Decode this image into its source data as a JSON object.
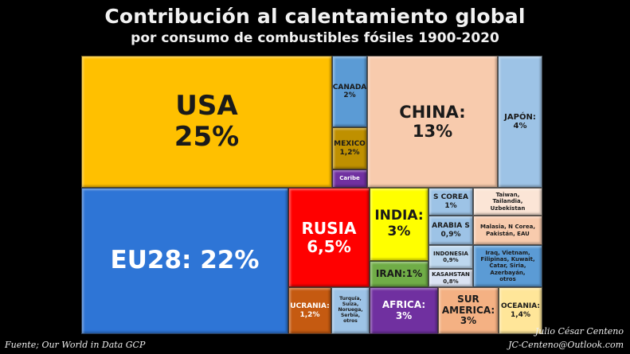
{
  "title": "Contribución al calentamiento global",
  "subtitle": "por consumo de combustibles fósiles 1900-2020",
  "source": "Fuente; Our World in Data GCP",
  "author": "Julio César Centeno",
  "email": "JC-Centeno@Outlook.com",
  "chart_data": {
    "type": "treemap",
    "title": "Contribución al calentamiento global",
    "subtitle": "por consumo de combustibles fósiles 1900-2020",
    "items": [
      {
        "label": "USA\n25%",
        "name": "USA",
        "value": 25,
        "color": "#ffc000",
        "text": "#1a1a1a"
      },
      {
        "label": "CANADA\n2%",
        "name": "CANADA",
        "value": 2,
        "color": "#5b9bd5",
        "text": "#1a1a1a"
      },
      {
        "label": "MEXICO\n1,2%",
        "name": "MEXICO",
        "value": 1.2,
        "color": "#bf9000",
        "text": "#1a1a1a"
      },
      {
        "label": "Caribe",
        "name": "Caribe",
        "value": null,
        "color": "#7030a0",
        "text": "#ffffff"
      },
      {
        "label": "CHINA:\n13%",
        "name": "CHINA",
        "value": 13,
        "color": "#f8cbad",
        "text": "#1a1a1a"
      },
      {
        "label": "JAPÓN:\n4%",
        "name": "JAPÓN",
        "value": 4,
        "color": "#9dc3e6",
        "text": "#1a1a1a"
      },
      {
        "label": "EU28: 22%",
        "name": "EU28",
        "value": 22,
        "color": "#2e75d6",
        "text": "#ffffff"
      },
      {
        "label": "RUSIA\n6,5%",
        "name": "RUSIA",
        "value": 6.5,
        "color": "#ff0000",
        "text": "#ffffff"
      },
      {
        "label": "INDIA:\n3%",
        "name": "INDIA",
        "value": 3,
        "color": "#ffff00",
        "text": "#1a1a1a"
      },
      {
        "label": "IRAN:1%",
        "name": "IRAN",
        "value": 1,
        "color": "#70ad47",
        "text": "#1a1a1a"
      },
      {
        "label": "S COREA\n1%",
        "name": "S COREA",
        "value": 1,
        "color": "#9dc3e6",
        "text": "#1a1a1a"
      },
      {
        "label": "Taiwan,\nTailandia,\nUzbekistan",
        "name": "Taiwan, Tailandia, Uzbekistan",
        "value": null,
        "color": "#fbe5d6",
        "text": "#1a1a1a"
      },
      {
        "label": "ARABIA S\n0,9%",
        "name": "ARABIA S",
        "value": 0.9,
        "color": "#9dc3e6",
        "text": "#1a1a1a"
      },
      {
        "label": "Malasia, N Corea,\nPakistán, EAU",
        "name": "Malasia, N Corea, Pakistán, EAU",
        "value": null,
        "color": "#f8cbad",
        "text": "#1a1a1a"
      },
      {
        "label": "INDONESIA\n0,9%",
        "name": "INDONESIA",
        "value": 0.9,
        "color": "#bdd7ee",
        "text": "#1a1a1a"
      },
      {
        "label": "KASAHSTAN\n0,8%",
        "name": "KASAHSTAN",
        "value": 0.8,
        "color": "#dae3f3",
        "text": "#1a1a1a"
      },
      {
        "label": "Iraq, Vietnam,\nFilipinas, Kuwait,\nCatar, Siria,\nAzerbayán,\notros",
        "name": "Iraq, Vietnam, Filipinas, Kuwait, Catar, Siria, Azerbayán, otros",
        "value": null,
        "color": "#5b9bd5",
        "text": "#1a1a1a"
      },
      {
        "label": "UCRANIA:\n1,2%",
        "name": "UCRANIA",
        "value": 1.2,
        "color": "#c55a11",
        "text": "#ffffff"
      },
      {
        "label": "Turquía,\nSuiza,\nNoruega,\nSerbia,\notros",
        "name": "Turquía, Suiza, Noruega, Serbia, otros",
        "value": null,
        "color": "#9dc3e6",
        "text": "#1a1a1a"
      },
      {
        "label": "AFRICA:\n3%",
        "name": "AFRICA",
        "value": 3,
        "color": "#7030a0",
        "text": "#ffffff"
      },
      {
        "label": "SUR\nAMERICA:\n3%",
        "name": "SUR AMERICA",
        "value": 3,
        "color": "#f4b183",
        "text": "#1a1a1a"
      },
      {
        "label": "OCEANIA:\n1,4%",
        "name": "OCEANIA",
        "value": 1.4,
        "color": "#ffe699",
        "text": "#1a1a1a"
      }
    ]
  }
}
